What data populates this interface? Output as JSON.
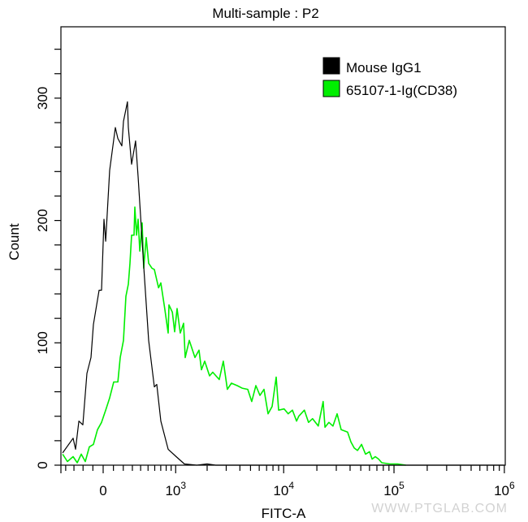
{
  "chart_data": {
    "type": "line",
    "title": "Multi-sample : P2",
    "xlabel": "FITC-A",
    "ylabel": "Count",
    "x_scale": "biexponential",
    "xlim": [
      -460,
      1000000
    ],
    "ylim": [
      0,
      358
    ],
    "x_ticks": [
      {
        "value": 0,
        "label": "0",
        "exp": ""
      },
      {
        "value": 1000,
        "label": "10",
        "exp": "3"
      },
      {
        "value": 10000,
        "label": "10",
        "exp": "4"
      },
      {
        "value": 100000,
        "label": "10",
        "exp": "5"
      },
      {
        "value": 1000000,
        "label": "10",
        "exp": "6"
      }
    ],
    "y_ticks": [
      0,
      100,
      200,
      300
    ],
    "grid": false,
    "legend_position": "top-right",
    "series": [
      {
        "name": "Mouse IgG1",
        "color": "#000000",
        "x": [
          -440,
          -310,
          -282,
          -245,
          -202,
          -160,
          -119,
          -95,
          -39,
          -16,
          8,
          24,
          63,
          119,
          144,
          185,
          202,
          245,
          255,
          291,
          338,
          368,
          440,
          508,
          594,
          633,
          702,
          839,
          1012,
          1218,
          1600,
          2000,
          2400,
          4300,
          990000
        ],
        "y": [
          10,
          22,
          13,
          36,
          33,
          75,
          88,
          115,
          143,
          143,
          201,
          183,
          241,
          276,
          267,
          261,
          281,
          297,
          276,
          246,
          265,
          236,
          163,
          102,
          64,
          66,
          36,
          13,
          7,
          1,
          0,
          1,
          0,
          0,
          0
        ]
      },
      {
        "name": "65107-1-Ig(CD38)",
        "color": "#00ee00",
        "x": [
          -440,
          -378,
          -310,
          -263,
          -219,
          -177,
          -135,
          -95,
          -55,
          -16,
          24,
          63,
          103,
          144,
          168,
          202,
          228,
          255,
          273,
          291,
          319,
          329,
          349,
          368,
          389,
          420,
          440,
          474,
          508,
          557,
          594,
          662,
          702,
          773,
          839,
          855,
          926,
          977,
          1033,
          1111,
          1197,
          1241,
          1357,
          1537,
          1680,
          1770,
          1897,
          2107,
          2254,
          2590,
          2820,
          3075,
          3350,
          3780,
          4190,
          4720,
          5130,
          5590,
          6090,
          6630,
          7220,
          7860,
          8560,
          9000,
          10100,
          11000,
          12000,
          13100,
          13700,
          15400,
          16800,
          18300,
          20600,
          22800,
          23700,
          25700,
          28000,
          30500,
          33200,
          38000,
          40700,
          43600,
          46700,
          50800,
          55200,
          60000,
          63300,
          67700,
          72500,
          77500,
          91800,
          108000,
          128000
        ],
        "y": [
          9,
          3,
          7,
          2,
          9,
          3,
          15,
          17,
          29,
          35,
          45,
          55,
          68,
          68,
          88,
          102,
          138,
          148,
          165,
          188,
          188,
          211,
          188,
          201,
          175,
          198,
          161,
          186,
          165,
          161,
          160,
          145,
          149,
          128,
          108,
          131,
          125,
          109,
          128,
          108,
          116,
          88,
          102,
          88,
          94,
          78,
          85,
          73,
          76,
          70,
          85,
          62,
          67,
          65,
          63,
          62,
          52,
          65,
          57,
          62,
          42,
          48,
          72,
          45,
          46,
          42,
          45,
          36,
          40,
          45,
          35,
          38,
          32,
          52,
          31,
          35,
          32,
          42,
          29,
          27,
          19,
          14,
          12,
          17,
          9,
          11,
          5,
          7,
          5,
          2,
          1,
          1,
          0
        ]
      }
    ]
  },
  "watermark": "WWW.PTGLAB.COM"
}
